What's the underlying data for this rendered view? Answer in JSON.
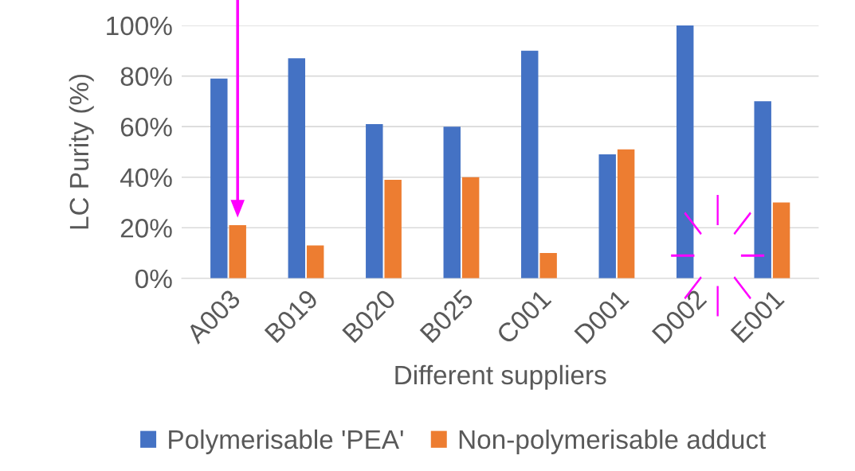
{
  "chart_data": {
    "type": "bar",
    "xlabel": "Different suppliers",
    "ylabel": "LC Purity (%)",
    "categories": [
      "A003",
      "B019",
      "B020",
      "B025",
      "C001",
      "D001",
      "D002",
      "E001"
    ],
    "series": [
      {
        "name": "Polymerisable 'PEA'",
        "color": "#4472c4",
        "values": [
          79,
          87,
          61,
          60,
          90,
          49,
          100,
          70
        ]
      },
      {
        "name": "Non-polymerisable adduct",
        "color": "#ed7d31",
        "values": [
          21,
          13,
          39,
          40,
          10,
          51,
          0,
          30
        ]
      }
    ],
    "ylim": [
      0,
      100
    ],
    "yticks": [
      {
        "value": 0,
        "label": "0%"
      },
      {
        "value": 20,
        "label": "20%"
      },
      {
        "value": 40,
        "label": "40%"
      },
      {
        "value": 60,
        "label": "60%"
      },
      {
        "value": 80,
        "label": "80%"
      },
      {
        "value": 100,
        "label": "100%"
      }
    ],
    "grid": "y",
    "legend": "bottom"
  }
}
